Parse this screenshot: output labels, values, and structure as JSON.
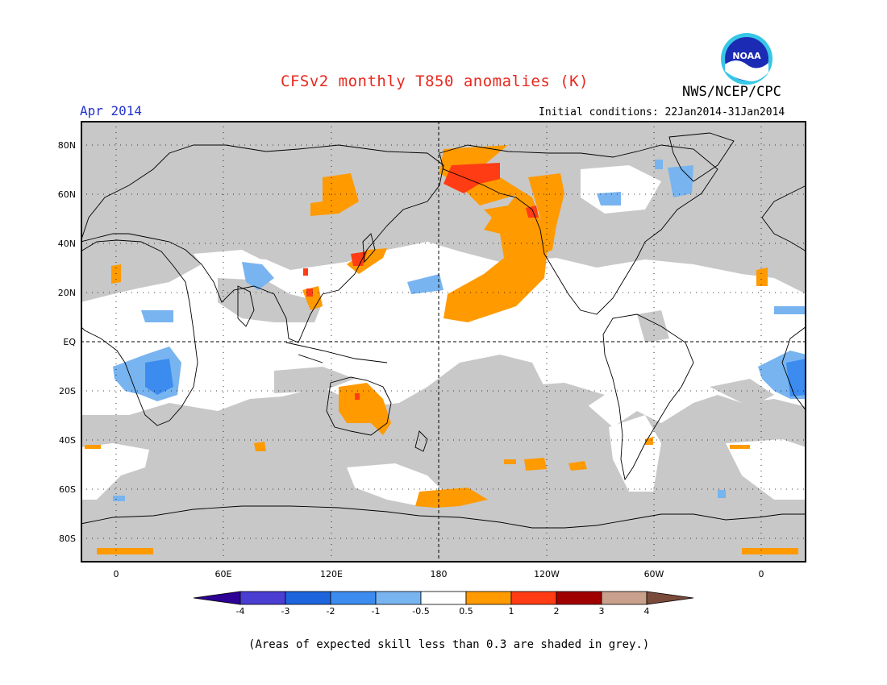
{
  "header": {
    "title": "CFSv2 monthly T850 anomalies (K)",
    "valid_month": "Apr 2014",
    "agency": "NWS/NCEP/CPC",
    "initial_conditions": "Initial conditions: 22Jan2014-31Jan2014",
    "logo_text": "NOAA"
  },
  "map": {
    "projection": "cylindrical equidistant",
    "center_longitude": 180,
    "lat_range": [
      -90,
      90
    ],
    "y_ticks": [
      "80N",
      "60N",
      "40N",
      "20N",
      "EQ",
      "20S",
      "40S",
      "60S",
      "80S"
    ],
    "x_ticks": [
      "0",
      "60E",
      "120E",
      "180",
      "120W",
      "60W",
      "0"
    ],
    "gridlines": "dotted",
    "colors": {
      "grey_low_skill": "#c8c8c8",
      "orange_0.5_1": "#ff9a00",
      "red_1_2": "#ff3c14",
      "lightblue_-1_-0.5": "#78b4f0",
      "blue_-2_-1": "#3c8cf0",
      "coast": "#000000"
    }
  },
  "colorbar": {
    "labels": [
      "-4",
      "-3",
      "-2",
      "-1",
      "-0.5",
      "0.5",
      "1",
      "2",
      "3",
      "4"
    ],
    "colors": [
      "#2d0096",
      "#4a3dd2",
      "#1e64dc",
      "#3c8cf0",
      "#78b4f0",
      "#ffffff",
      "#ff9a00",
      "#ff3c14",
      "#a00000",
      "#c8a08c",
      "#7a4a3a"
    ]
  },
  "footnote": "(Areas of expected skill less than 0.3 are shaded in grey.)"
}
